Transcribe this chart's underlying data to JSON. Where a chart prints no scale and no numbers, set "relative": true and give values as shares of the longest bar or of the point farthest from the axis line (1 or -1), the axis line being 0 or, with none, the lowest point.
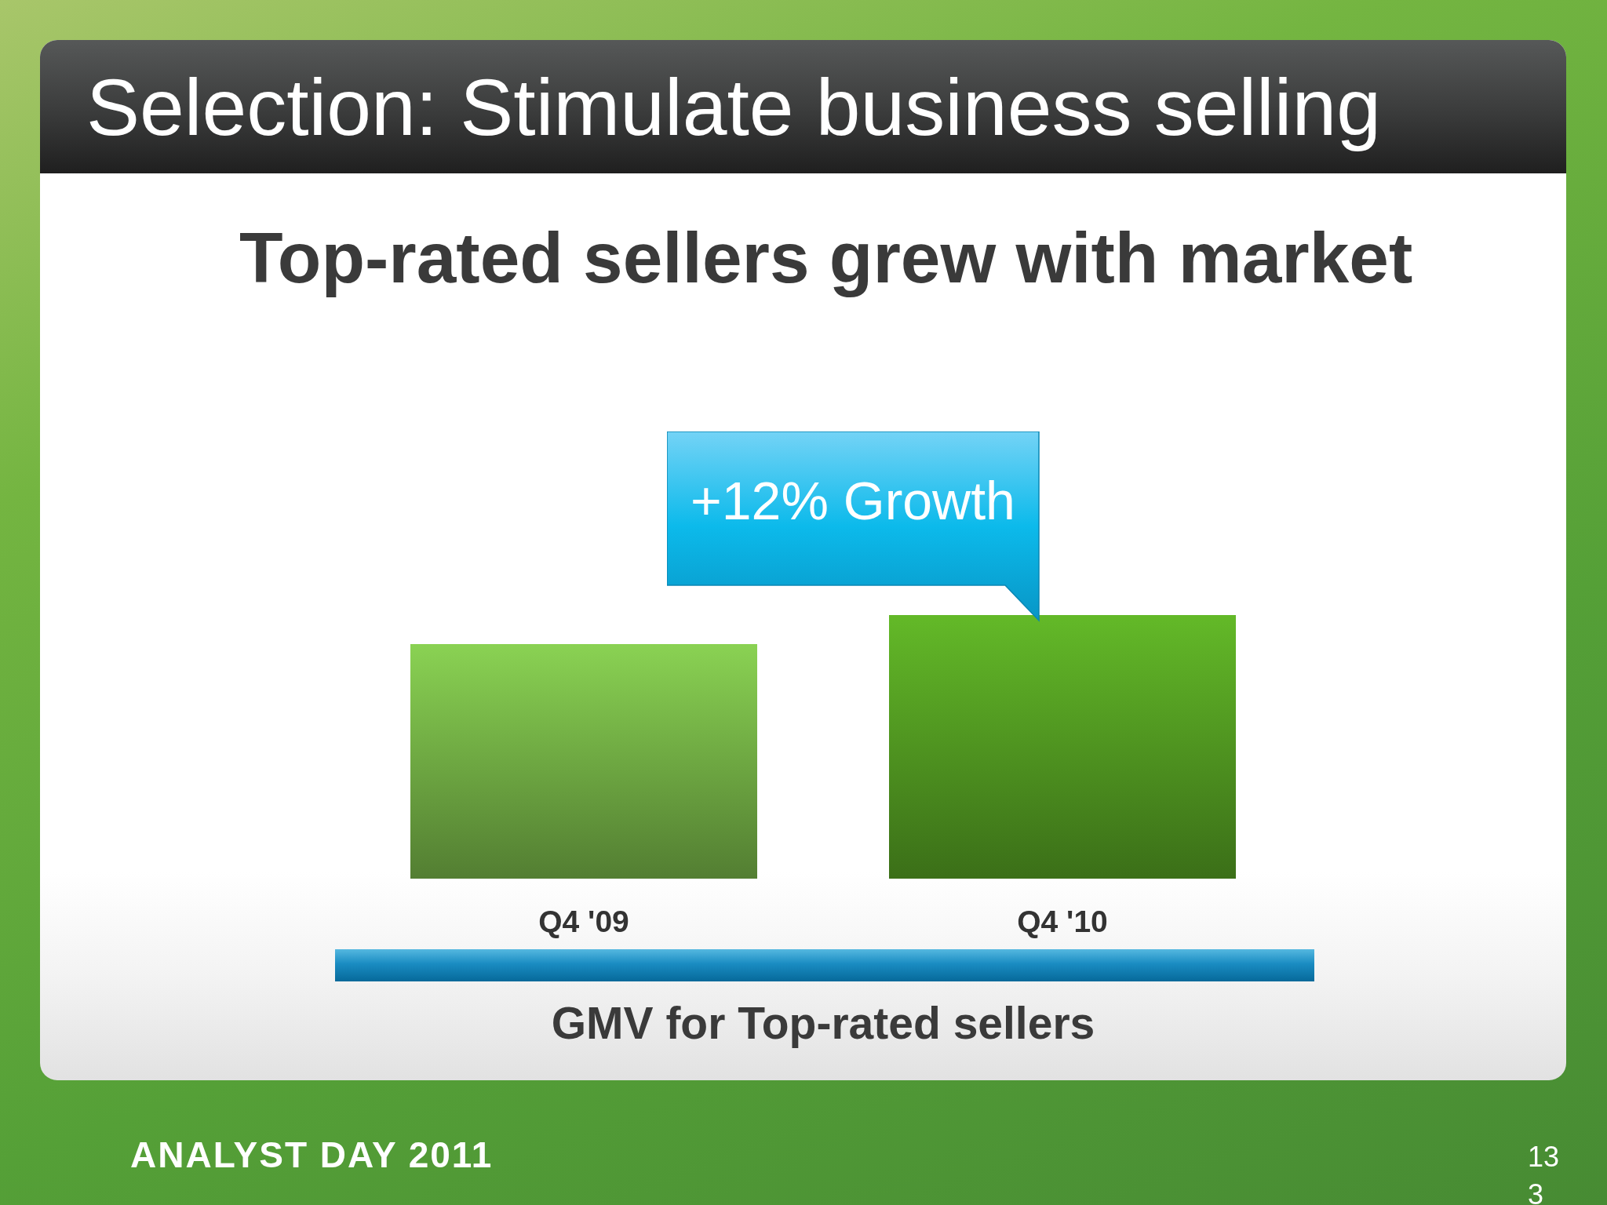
{
  "chart_data": {
    "type": "bar",
    "title": "Selection: Stimulate business selling",
    "subtitle": "Top-rated sellers grew with market",
    "xlabel": "GMV for Top-rated sellers",
    "categories": [
      "Q4 '09",
      "Q4 '10"
    ],
    "values": [
      0.89,
      1
    ],
    "colors": [
      "#6ea842",
      "#4f9420"
    ],
    "relative": true,
    "annotations": [
      {
        "text": "+12% Growth",
        "x": "Q4 '10",
        "y": 1
      },
      "ANALYST DAY 2011",
      "133"
    ]
  }
}
